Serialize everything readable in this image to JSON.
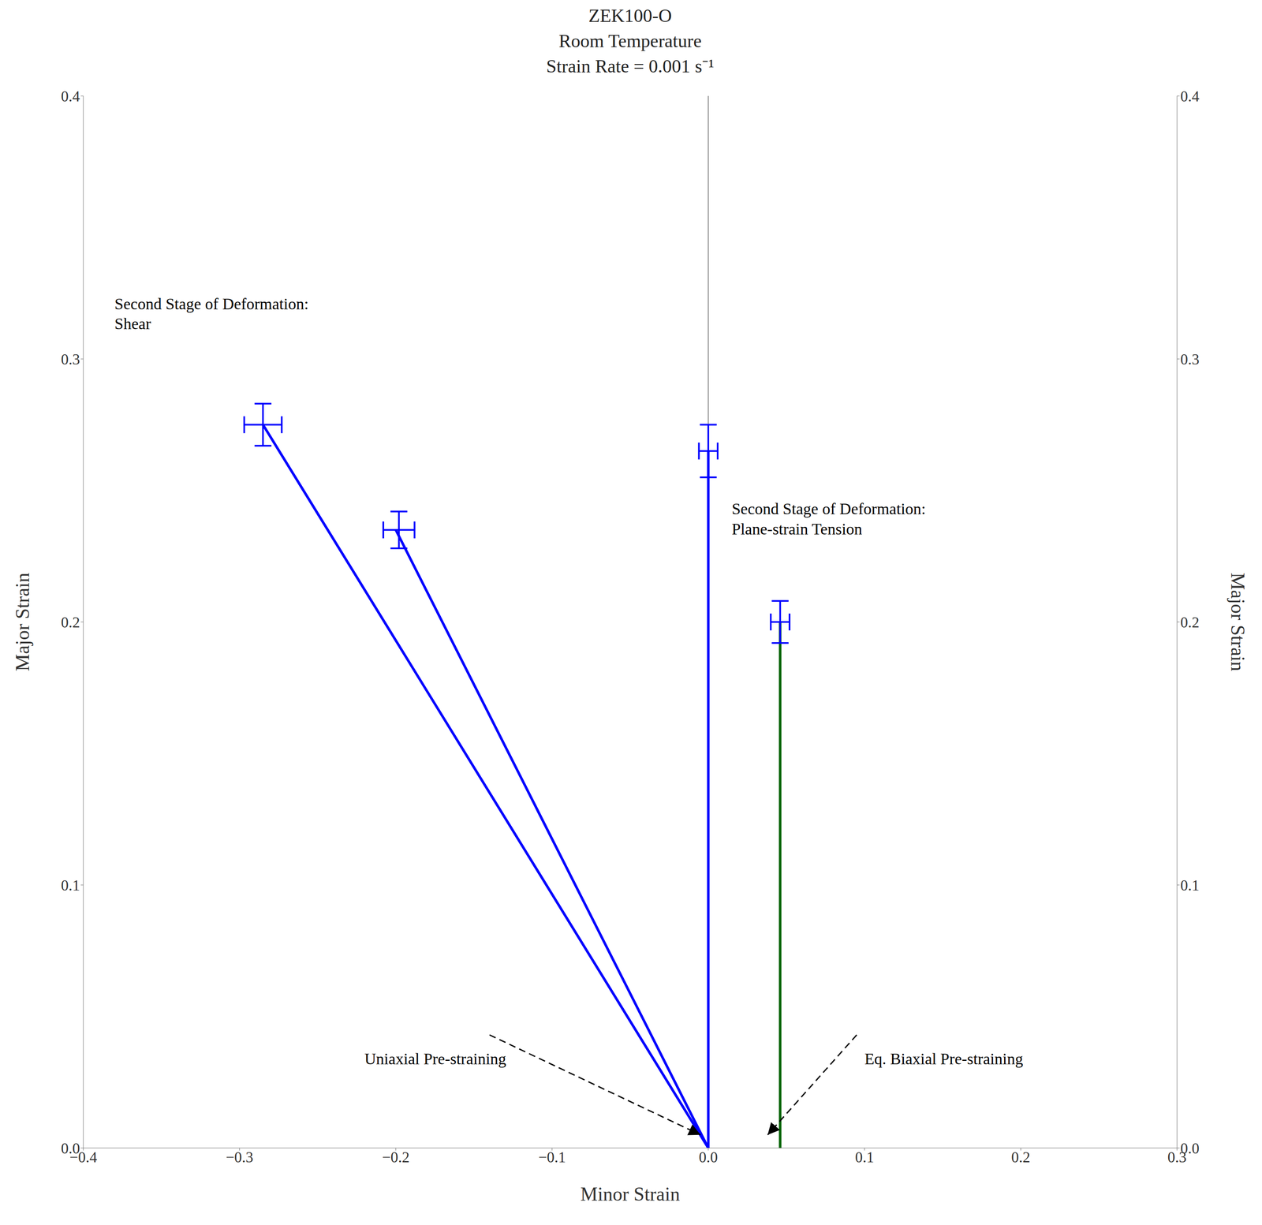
{
  "chart_data": {
    "type": "line",
    "title": "ZEK100-O\nRoom Temperature\nStrain Rate = 0.001 s⁻¹",
    "xlabel": "Minor Strain",
    "ylabel": "Major Strain",
    "y2label": "Major Strain",
    "xlim": [
      -0.4,
      0.3
    ],
    "ylim": [
      0,
      0.4
    ],
    "y2lim": [
      0,
      0.4
    ],
    "xticks": [
      {
        "value": -0.4,
        "label": "−0.4"
      },
      {
        "value": -0.3,
        "label": "−0.3"
      },
      {
        "value": -0.2,
        "label": "−0.2"
      },
      {
        "value": -0.1,
        "label": "−0.1"
      },
      {
        "value": 0.0,
        "label": "0.0"
      },
      0.1,
      0.2,
      0.3
    ],
    "yticks": [
      {
        "value": 0,
        "label": "0.0"
      },
      0.1,
      0.2,
      0.3,
      0.4
    ],
    "y2ticks": [
      {
        "value": 0,
        "label": "0.0"
      },
      0.1,
      0.2,
      0.3,
      0.4
    ],
    "grid": false,
    "series": [
      {
        "x": [
          -0.285,
          0.0
        ],
        "values": [
          0.275,
          0.0
        ],
        "color": "#0000ff"
      },
      {
        "x": [
          -0.2,
          0.0
        ],
        "values": [
          0.235,
          0.0
        ],
        "color": "#0000ff"
      },
      {
        "x": [
          0.0,
          0.0
        ],
        "values": [
          0.0,
          0.265
        ],
        "color": "#0000ff"
      },
      {
        "x": [
          0.046,
          0.046
        ],
        "values": [
          0.0,
          0.2
        ],
        "color": "#006400"
      }
    ],
    "error_points": [
      {
        "x": -0.285,
        "y": 0.275,
        "xerr": 0.012,
        "yerr": 0.008,
        "color": "#0000ff"
      },
      {
        "x": -0.198,
        "y": 0.235,
        "xerr": 0.01,
        "yerr": 0.007,
        "color": "#0000ff"
      },
      {
        "x": 0.0,
        "y": 0.265,
        "xerr": 0.006,
        "yerr": 0.01,
        "color": "#0000ff"
      },
      {
        "x": 0.046,
        "y": 0.2,
        "xerr": 0.006,
        "yerr": 0.008,
        "color": "#0000ff"
      }
    ],
    "vlines": [
      {
        "x": 0.0,
        "color": "gray"
      }
    ],
    "arrows": [
      {
        "from": [
          -0.14,
          0.043
        ],
        "to": [
          -0.005,
          0.005
        ],
        "color": "black",
        "line_style": "dashed"
      },
      {
        "from": [
          0.095,
          0.043
        ],
        "to": [
          0.038,
          0.005
        ],
        "color": "black",
        "line_style": "dashed"
      }
    ],
    "annotations": [
      {
        "text": "Second Stage of Deformation:\nShear",
        "x": -0.38,
        "y": 0.325
      },
      {
        "text": "Second Stage of Deformation:\nPlane-strain Tension",
        "x": 0.015,
        "y": 0.247
      },
      {
        "text": "Uniaxial Pre-straining",
        "x": -0.22,
        "y": 0.038
      },
      {
        "text": "Eq. Biaxial Pre-straining",
        "x": 0.1,
        "y": 0.038
      }
    ]
  }
}
